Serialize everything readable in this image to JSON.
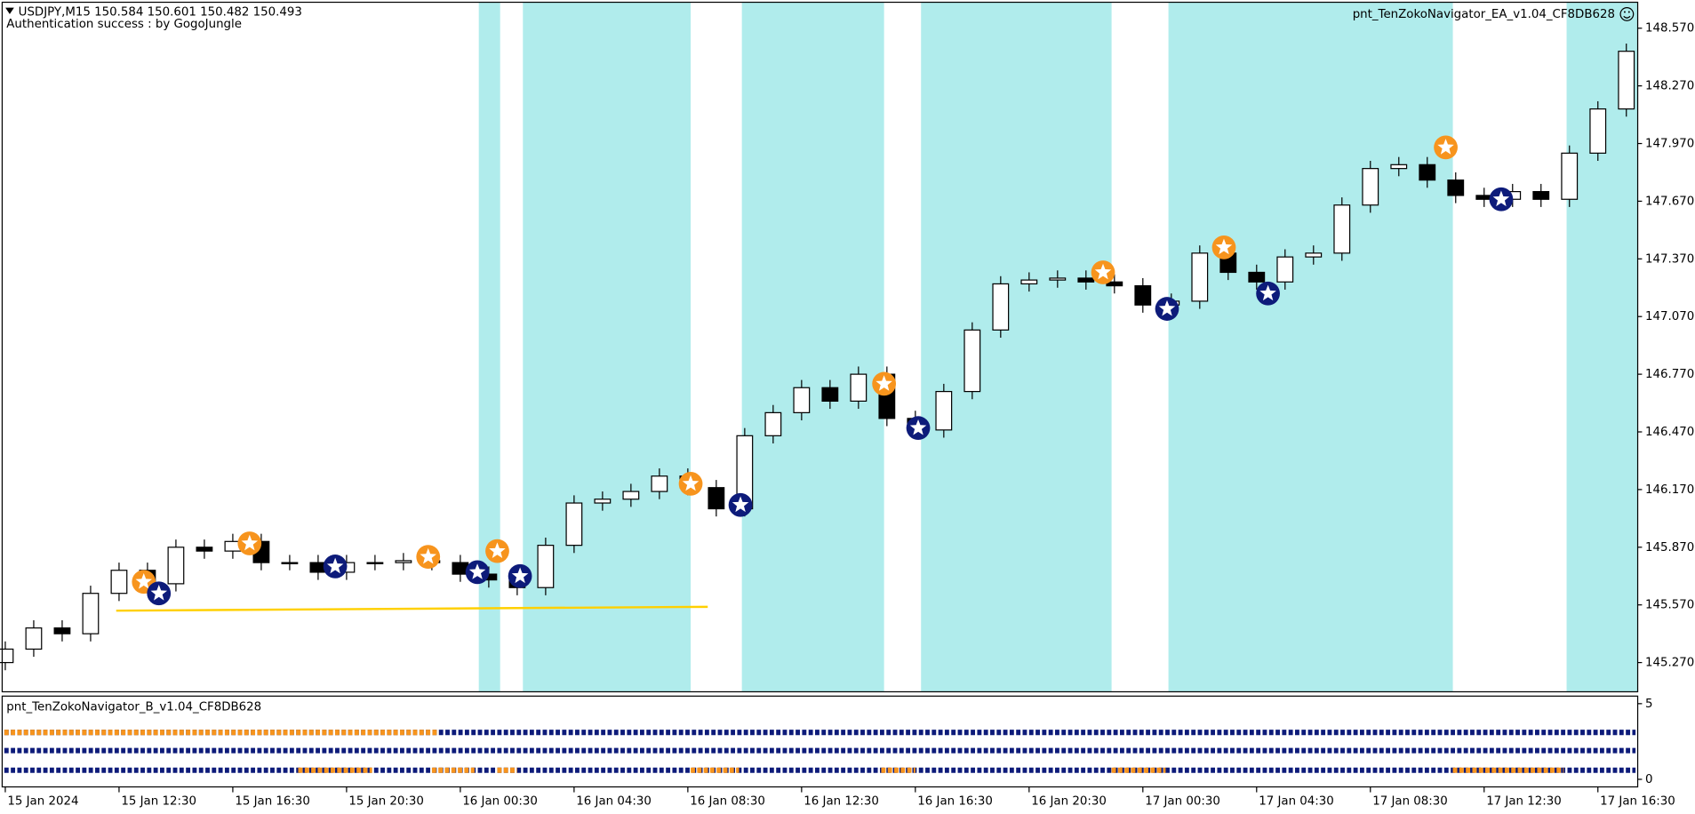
{
  "chart_data": [
    {
      "type": "candlestick",
      "title": "USDJPY,M15  150.584 150.601 150.482 150.493",
      "subtitle": "Authentication success : by GogoJungle",
      "annotation": "pnt_TenZokoNavigator_EA_v1.04_CF8DB628",
      "categories": [
        "15 Jan 2024",
        null,
        null,
        null,
        "15 Jan 12:30",
        null,
        null,
        null,
        "15 Jan 16:30",
        null,
        null,
        null,
        "15 Jan 20:30",
        null,
        null,
        null,
        "16 Jan 00:30",
        null,
        null,
        null,
        "16 Jan 04:30",
        null,
        null,
        null,
        "16 Jan 08:30",
        null,
        null,
        null,
        "16 Jan 12:30",
        null,
        null,
        null,
        "16 Jan 16:30",
        null,
        null,
        null,
        "16 Jan 20:30",
        null,
        null,
        null,
        "17 Jan 00:30",
        null,
        null,
        null,
        "17 Jan 04:30",
        null,
        null,
        null,
        "17 Jan 08:30",
        null,
        null,
        null,
        "17 Jan 12:30",
        null,
        null,
        null,
        "17 Jan 16:30",
        null
      ],
      "open": [
        145.27,
        145.34,
        145.45,
        145.42,
        145.63,
        145.75,
        145.68,
        145.87,
        145.85,
        145.9,
        145.79,
        145.79,
        145.74,
        145.79,
        145.79,
        145.8,
        145.79,
        145.73,
        145.7,
        145.66,
        145.88,
        146.1,
        146.12,
        146.16,
        146.24,
        146.18,
        146.07,
        146.45,
        146.57,
        146.7,
        146.63,
        146.77,
        146.54,
        146.48,
        146.68,
        147.0,
        147.24,
        147.26,
        147.27,
        147.25,
        147.23,
        147.13,
        147.15,
        147.4,
        147.3,
        147.25,
        147.38,
        147.4,
        147.65,
        147.84,
        147.86,
        147.78,
        147.7,
        147.68,
        147.72,
        147.68,
        147.92,
        148.15
      ],
      "high": [
        145.38,
        145.49,
        145.49,
        145.67,
        145.79,
        145.79,
        145.91,
        145.91,
        145.94,
        145.94,
        145.83,
        145.83,
        145.83,
        145.83,
        145.84,
        145.84,
        145.83,
        145.77,
        145.74,
        145.92,
        146.14,
        146.16,
        146.2,
        146.28,
        146.28,
        146.22,
        146.49,
        146.61,
        146.74,
        146.74,
        146.81,
        146.81,
        146.58,
        146.72,
        147.04,
        147.28,
        147.3,
        147.31,
        147.31,
        147.29,
        147.27,
        147.19,
        147.44,
        147.44,
        147.34,
        147.42,
        147.44,
        147.69,
        147.88,
        147.9,
        147.9,
        147.82,
        147.74,
        147.76,
        147.76,
        147.96,
        148.19,
        148.49
      ],
      "low": [
        145.23,
        145.3,
        145.38,
        145.38,
        145.59,
        145.64,
        145.64,
        145.81,
        145.81,
        145.75,
        145.75,
        145.7,
        145.7,
        145.75,
        145.75,
        145.75,
        145.69,
        145.66,
        145.62,
        145.62,
        145.84,
        146.06,
        146.08,
        146.12,
        146.14,
        146.03,
        146.03,
        146.41,
        146.53,
        146.59,
        146.59,
        146.5,
        146.44,
        146.44,
        146.64,
        146.96,
        147.2,
        147.22,
        147.21,
        147.19,
        147.09,
        147.09,
        147.11,
        147.26,
        147.21,
        147.21,
        147.34,
        147.36,
        147.61,
        147.8,
        147.74,
        147.66,
        147.64,
        147.64,
        147.64,
        147.64,
        147.88,
        148.11
      ],
      "close": [
        145.34,
        145.45,
        145.42,
        145.63,
        145.75,
        145.68,
        145.87,
        145.85,
        145.9,
        145.79,
        145.79,
        145.74,
        145.79,
        145.79,
        145.8,
        145.79,
        145.73,
        145.7,
        145.66,
        145.88,
        146.1,
        146.12,
        146.16,
        146.24,
        146.18,
        146.07,
        146.45,
        146.57,
        146.7,
        146.63,
        146.77,
        146.54,
        146.48,
        146.68,
        147.0,
        147.24,
        147.26,
        147.27,
        147.25,
        147.23,
        147.13,
        147.15,
        147.4,
        147.3,
        147.25,
        147.38,
        147.4,
        147.65,
        147.84,
        147.86,
        147.78,
        147.7,
        147.68,
        147.72,
        147.68,
        147.92,
        148.15,
        148.45
      ],
      "xlim": [
        -0.11,
        57.4
      ],
      "ylim": [
        145.118,
        148.705
      ],
      "yticks": [
        {
          "value": 145.27,
          "label": "145.270"
        },
        {
          "value": 145.57,
          "label": "145.570"
        },
        {
          "value": 145.87,
          "label": "145.870"
        },
        {
          "value": 146.17,
          "label": "146.170"
        },
        {
          "value": 146.47,
          "label": "146.470"
        },
        {
          "value": 146.77,
          "label": "146.770"
        },
        {
          "value": 147.07,
          "label": "147.070"
        },
        {
          "value": 147.37,
          "label": "147.370"
        },
        {
          "value": 147.67,
          "label": "147.670"
        },
        {
          "value": 147.97,
          "label": "147.970"
        },
        {
          "value": 148.27,
          "label": "148.270"
        },
        {
          "value": 148.57,
          "label": "148.570"
        }
      ],
      "zones": {
        "color": "#b0ecec",
        "ranges": [
          [
            16.65,
            17.4
          ],
          [
            18.2,
            24.1
          ],
          [
            25.9,
            30.9
          ],
          [
            32.2,
            38.9
          ],
          [
            40.9,
            50.9
          ],
          [
            54.9,
            57.4
          ]
        ]
      },
      "markers": [
        {
          "color": "#f7941d",
          "x": [
            4.87,
            8.59,
            14.87,
            17.3,
            24.1,
            30.9,
            38.6,
            42.85,
            50.65
          ],
          "y": [
            145.69,
            145.89,
            145.82,
            145.85,
            146.2,
            146.72,
            147.3,
            147.43,
            147.95
          ]
        },
        {
          "color": "#0d1b7a",
          "x": [
            5.4,
            11.6,
            16.6,
            18.1,
            25.85,
            32.1,
            40.85,
            44.4,
            52.6
          ],
          "y": [
            145.63,
            145.77,
            145.74,
            145.72,
            146.09,
            146.49,
            147.11,
            147.19,
            147.68
          ]
        }
      ],
      "level": {
        "color": "#ffd000",
        "x": [
          3.9,
          24.7
        ],
        "y": [
          145.54,
          145.56
        ]
      }
    },
    {
      "type": "state-rows",
      "title": "pnt_TenZokoNavigator_B_v1.04_CF8DB628",
      "xlim": [
        -0.11,
        57.4
      ],
      "ylim": [
        -0.5,
        5.5
      ],
      "yticks": [
        0,
        5
      ],
      "base_color": "#0d1b7a",
      "rows": [
        {
          "level": 3.1,
          "color": "#f7941d",
          "ranges": [
            [
              -0.11,
              15.2
            ]
          ]
        },
        {
          "level": 1.9,
          "color": "#f7941d",
          "ranges": []
        },
        {
          "level": 0.6,
          "color": "#f7941d",
          "ranges": [
            [
              10.3,
              12.9
            ],
            [
              15.0,
              16.5
            ],
            [
              17.3,
              18.0
            ],
            [
              24.1,
              25.8
            ],
            [
              30.8,
              32.0
            ],
            [
              38.9,
              40.8
            ],
            [
              50.9,
              54.8
            ]
          ]
        }
      ]
    }
  ]
}
